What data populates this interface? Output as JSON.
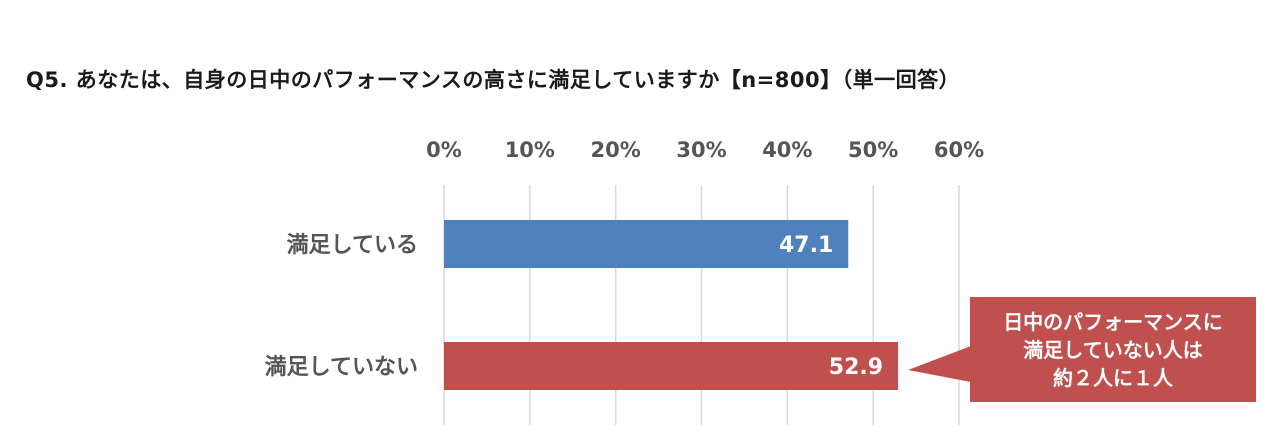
{
  "chart_data": {
    "type": "bar",
    "orientation": "horizontal",
    "title": "Q5. あなたは、自身の日中のパフォーマンスの高さに満足していますか【n=800】（単一回答）",
    "categories": [
      "満足している",
      "満足していない"
    ],
    "values": [
      47.1,
      52.9
    ],
    "value_labels": [
      "47.1",
      "52.9"
    ],
    "colors": [
      "#4f81bd",
      "#c0504d"
    ],
    "xlim": [
      0,
      60
    ],
    "ticks": [
      0,
      10,
      20,
      30,
      40,
      50,
      60
    ],
    "tick_labels": [
      "0%",
      "10%",
      "20%",
      "30%",
      "40%",
      "50%",
      "60%"
    ],
    "axis_position": "top",
    "grid": true
  },
  "callout": {
    "lines": [
      "日中のパフォーマンスに",
      "満足していない人は",
      "約２人に１人"
    ],
    "color": "#c0504d"
  }
}
